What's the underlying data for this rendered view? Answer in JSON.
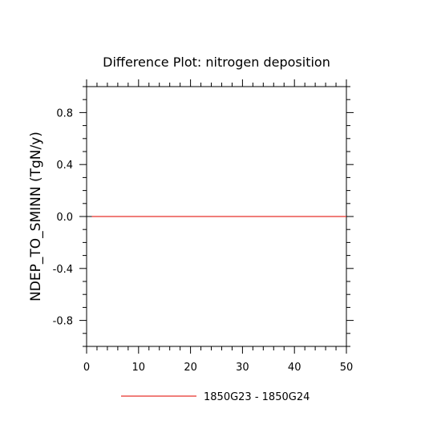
{
  "chart_data": {
    "type": "line",
    "title": "Difference Plot: nitrogen deposition",
    "xlabel": "",
    "ylabel": "NDEP_TO_SMINN  (TgN/y)",
    "xlim": [
      0,
      50
    ],
    "ylim": [
      -1.0,
      1.0
    ],
    "x_ticks": [
      0,
      10,
      20,
      30,
      40,
      50
    ],
    "x_tick_labels": [
      "0",
      "10",
      "20",
      "30",
      "40",
      "50"
    ],
    "y_ticks": [
      0.8,
      0.4,
      0.0,
      -0.4,
      -0.8
    ],
    "y_tick_labels": [
      "0.8",
      "0.4",
      "0.0",
      "-0.4",
      "-0.8"
    ],
    "grid": false,
    "zero_line": true,
    "legend_position": "bottom",
    "series": [
      {
        "name": "1850G23 - 1850G24",
        "color": "#e8302a",
        "x": [
          1,
          50
        ],
        "y": [
          0.0,
          0.0
        ]
      }
    ]
  }
}
